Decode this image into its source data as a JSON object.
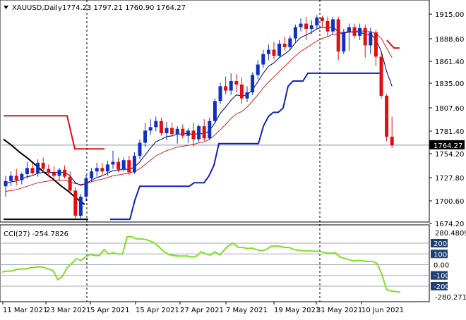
{
  "chart_data": [
    {
      "type": "candlestick",
      "header": {
        "symbol_timeframe": "XAUUSD,Daily",
        "ohlc": "1774.23 1797.21 1760.90 1764.27"
      },
      "ylim": [
        1674.2,
        1922
      ],
      "y_ticks": [
        "1915.00",
        "1888.60",
        "1861.40",
        "1835.00",
        "1807.60",
        "1781.40",
        "1754.20",
        "1727.80",
        "1700.60",
        "1674.20"
      ],
      "current_price": "1764.27",
      "x_ticks": [
        "11 Mar 2021",
        "23 Mar 2021",
        "5 Apr 2021",
        "15 Apr 2021",
        "27 Apr 2021",
        "7 May 2021",
        "19 May 2021",
        "31 May 2021",
        "10 Jun 2021"
      ],
      "candles": [
        [
          1717,
          1729,
          1705,
          1723
        ],
        [
          1723,
          1734,
          1717,
          1729
        ],
        [
          1729,
          1737,
          1718,
          1724
        ],
        [
          1724,
          1733,
          1719,
          1731
        ],
        [
          1731,
          1745,
          1726,
          1738
        ],
        [
          1738,
          1744,
          1730,
          1732
        ],
        [
          1732,
          1748,
          1728,
          1744
        ],
        [
          1744,
          1750,
          1733,
          1737
        ],
        [
          1737,
          1742,
          1728,
          1733
        ],
        [
          1733,
          1740,
          1724,
          1729
        ],
        [
          1729,
          1738,
          1723,
          1736
        ],
        [
          1736,
          1741,
          1726,
          1728
        ],
        [
          1728,
          1734,
          1709,
          1712
        ],
        [
          1712,
          1716,
          1679,
          1683
        ],
        [
          1683,
          1708,
          1678,
          1705
        ],
        [
          1705,
          1730,
          1700,
          1726
        ],
        [
          1726,
          1738,
          1722,
          1734
        ],
        [
          1734,
          1744,
          1728,
          1738
        ],
        [
          1738,
          1744,
          1730,
          1734
        ],
        [
          1734,
          1746,
          1729,
          1742
        ],
        [
          1742,
          1758,
          1737,
          1745
        ],
        [
          1745,
          1750,
          1733,
          1736
        ],
        [
          1736,
          1750,
          1734,
          1747
        ],
        [
          1747,
          1752,
          1730,
          1733
        ],
        [
          1733,
          1756,
          1731,
          1752
        ],
        [
          1752,
          1771,
          1748,
          1767
        ],
        [
          1767,
          1790,
          1762,
          1781
        ],
        [
          1781,
          1794,
          1776,
          1785
        ],
        [
          1785,
          1797,
          1780,
          1792
        ],
        [
          1792,
          1796,
          1775,
          1778
        ],
        [
          1778,
          1791,
          1770,
          1784
        ],
        [
          1784,
          1790,
          1774,
          1777
        ],
        [
          1777,
          1786,
          1766,
          1783
        ],
        [
          1783,
          1788,
          1772,
          1775
        ],
        [
          1775,
          1784,
          1767,
          1781
        ],
        [
          1781,
          1790,
          1763,
          1771
        ],
        [
          1771,
          1788,
          1768,
          1786
        ],
        [
          1786,
          1794,
          1769,
          1772
        ],
        [
          1772,
          1796,
          1770,
          1792
        ],
        [
          1792,
          1818,
          1789,
          1815
        ],
        [
          1815,
          1836,
          1812,
          1832
        ],
        [
          1832,
          1843,
          1823,
          1827
        ],
        [
          1827,
          1847,
          1822,
          1838
        ],
        [
          1838,
          1846,
          1825,
          1834
        ],
        [
          1834,
          1842,
          1812,
          1818
        ],
        [
          1818,
          1832,
          1814,
          1825
        ],
        [
          1825,
          1848,
          1822,
          1845
        ],
        [
          1845,
          1862,
          1840,
          1857
        ],
        [
          1857,
          1874,
          1853,
          1869
        ],
        [
          1869,
          1880,
          1862,
          1874
        ],
        [
          1874,
          1883,
          1863,
          1867
        ],
        [
          1867,
          1885,
          1866,
          1881
        ],
        [
          1881,
          1889,
          1873,
          1877
        ],
        [
          1877,
          1890,
          1875,
          1887
        ],
        [
          1887,
          1903,
          1883,
          1900
        ],
        [
          1900,
          1910,
          1895,
          1904
        ],
        [
          1904,
          1912,
          1885,
          1898
        ],
        [
          1898,
          1908,
          1892,
          1902
        ],
        [
          1902,
          1914,
          1898,
          1911
        ],
        [
          1911,
          1913,
          1899,
          1907
        ],
        [
          1907,
          1912,
          1889,
          1895
        ],
        [
          1895,
          1912,
          1891,
          1909
        ],
        [
          1909,
          1912,
          1862,
          1872
        ],
        [
          1872,
          1898,
          1869,
          1894
        ],
        [
          1894,
          1904,
          1873,
          1900
        ],
        [
          1900,
          1904,
          1887,
          1890
        ],
        [
          1890,
          1904,
          1885,
          1899
        ],
        [
          1899,
          1903,
          1865,
          1879
        ],
        [
          1879,
          1899,
          1869,
          1894
        ],
        [
          1894,
          1897,
          1855,
          1866
        ],
        [
          1866,
          1871,
          1818,
          1821
        ],
        [
          1821,
          1823,
          1769,
          1774
        ],
        [
          1774,
          1797,
          1761,
          1764
        ]
      ],
      "indicators": {
        "ema_slow": [
          1711,
          1712,
          1713,
          1715,
          1717,
          1719,
          1721,
          1722,
          1723,
          1724,
          1724,
          1724,
          1722,
          1720,
          1719,
          1720,
          1722,
          1724,
          1725,
          1727,
          1729,
          1730,
          1731,
          1732,
          1734,
          1737,
          1742,
          1747,
          1752,
          1755,
          1758,
          1760,
          1762,
          1763,
          1764,
          1765,
          1767,
          1768,
          1771,
          1776,
          1782,
          1788,
          1795,
          1800,
          1803,
          1808,
          1815,
          1822,
          1830,
          1837,
          1843,
          1849,
          1855,
          1861,
          1867,
          1872,
          1876,
          1880,
          1884,
          1887,
          1889,
          1892,
          1892,
          1893,
          1894,
          1895,
          1896,
          1895,
          1895,
          1893,
          1887,
          1876,
          1865
        ],
        "ema_fast": [
          1720,
          1722,
          1723,
          1725,
          1728,
          1729,
          1732,
          1733,
          1733,
          1733,
          1733,
          1733,
          1729,
          1721,
          1718,
          1720,
          1724,
          1727,
          1729,
          1732,
          1735,
          1735,
          1737,
          1736,
          1739,
          1745,
          1753,
          1761,
          1768,
          1771,
          1774,
          1775,
          1777,
          1777,
          1778,
          1776,
          1778,
          1777,
          1781,
          1790,
          1801,
          1808,
          1816,
          1822,
          1821,
          1822,
          1828,
          1837,
          1847,
          1855,
          1859,
          1865,
          1869,
          1874,
          1882,
          1888,
          1891,
          1894,
          1898,
          1900,
          1899,
          1901,
          1894,
          1894,
          1895,
          1894,
          1895,
          1891,
          1892,
          1886,
          1872,
          1849,
          1832
        ],
        "channel_upper": [
          1798,
          null,
          null,
          null,
          null,
          null,
          null,
          null,
          null,
          null,
          null,
          null,
          null,
          1798,
          1760,
          1760,
          1760,
          1760
        ],
        "channel_upper_recent": [
          1885,
          1876,
          1876
        ],
        "trailing_support": [
          1679,
          1679,
          1679,
          1679,
          1679,
          1701,
          1717,
          1717,
          1717,
          1717,
          1717,
          1717,
          1717,
          1717,
          1717,
          1717,
          1717,
          1721,
          1721,
          1721,
          1729,
          1741,
          1766,
          1766,
          1766,
          1766,
          1766,
          1766,
          1766,
          1766,
          1766,
          1786,
          1797,
          1802,
          1802,
          1807,
          1832,
          1838,
          1838,
          1838,
          1847,
          1847,
          1847,
          1847,
          1847,
          1847,
          1847,
          1847,
          1847,
          1847,
          1847,
          1847,
          1847,
          1847,
          1847,
          1847
        ],
        "resistance_line": [
          1771,
          1764,
          1756,
          1749,
          1741,
          1733,
          1726,
          1718,
          1711,
          1703,
          1696
        ],
        "support_line": 1679
      }
    },
    {
      "type": "line",
      "title": "CCI(27) -254.7826",
      "ylim": [
        -305,
        305
      ],
      "levels": [
        "200",
        "100",
        "0.00",
        "-100",
        "-200"
      ],
      "max_label": "280.4809",
      "min_label": "-280.2713",
      "values": [
        -68,
        -60,
        -60,
        -45,
        -40,
        -40,
        -30,
        -25,
        -20,
        -25,
        -40,
        -55,
        -140,
        -110,
        -30,
        10,
        55,
        40,
        70,
        95,
        85,
        85,
        140,
        100,
        110,
        100,
        100,
        260,
        260,
        240,
        240,
        235,
        220,
        200,
        160,
        120,
        95,
        85,
        80,
        80,
        80,
        70,
        80,
        120,
        100,
        90,
        120,
        90,
        140,
        180,
        200,
        160,
        160,
        150,
        155,
        140,
        130,
        140,
        170,
        175,
        170,
        160,
        160,
        140,
        135,
        130,
        130,
        125,
        125,
        120,
        110,
        105,
        110,
        70,
        60,
        45,
        35,
        40,
        35,
        30,
        30,
        10,
        -90,
        -230,
        -245,
        -250,
        -255
      ]
    }
  ]
}
